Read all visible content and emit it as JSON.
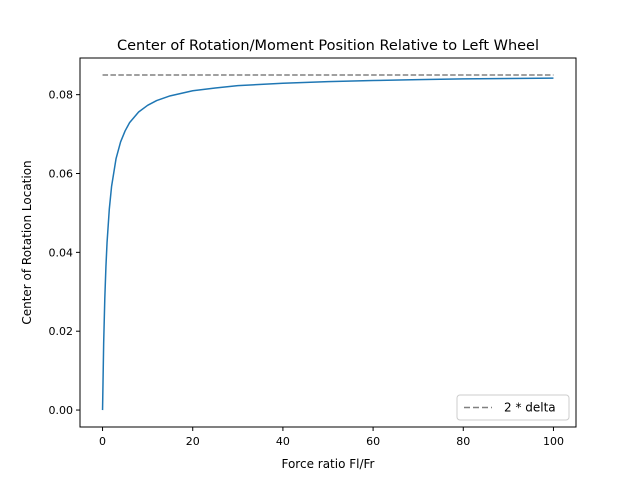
{
  "chart_data": {
    "type": "line",
    "title": "Center of Rotation/Moment Position Relative to Left Wheel",
    "xlabel": "Force ratio Fl/Fr",
    "ylabel": "Center of Rotation Location",
    "xlim": [
      -5,
      105
    ],
    "ylim": [
      -0.0043,
      0.0893
    ],
    "xticks": [
      0,
      20,
      40,
      60,
      80,
      100
    ],
    "yticks": [
      0.0,
      0.02,
      0.04,
      0.06,
      0.08
    ],
    "xtick_labels": [
      "0",
      "20",
      "40",
      "60",
      "80",
      "100"
    ],
    "ytick_labels": [
      "0.00",
      "0.02",
      "0.04",
      "0.06",
      "0.08"
    ],
    "legend_position": "lower right",
    "grid": false,
    "series": [
      {
        "style": "solid",
        "color": "#1f77b4",
        "x": [
          0,
          0.25,
          0.5,
          0.75,
          1,
          1.5,
          2,
          3,
          4,
          5,
          6,
          8,
          10,
          12,
          15,
          20,
          25,
          30,
          40,
          50,
          60,
          70,
          80,
          90,
          100
        ],
        "y": [
          0,
          0.017,
          0.0283,
          0.0364,
          0.0425,
          0.051,
          0.0567,
          0.0638,
          0.068,
          0.0708,
          0.0729,
          0.0756,
          0.0773,
          0.0785,
          0.0797,
          0.081,
          0.0817,
          0.0823,
          0.0829,
          0.0833,
          0.0836,
          0.0838,
          0.084,
          0.0841,
          0.0842
        ]
      },
      {
        "name": "2 * delta",
        "style": "dashed",
        "color": "#808080",
        "x": [
          0,
          100
        ],
        "y": [
          0.085,
          0.085
        ]
      }
    ]
  }
}
